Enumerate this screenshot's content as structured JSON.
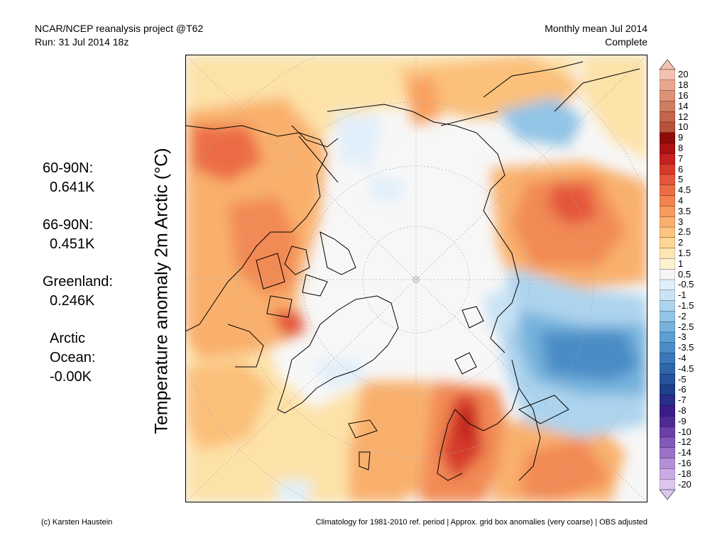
{
  "header": {
    "line1_left": "NCAR/NCEP reanalysis project @T62",
    "line2_left": "Run: 31 Jul 2014 18z",
    "line1_right": "Monthly mean Jul 2014",
    "line2_right": "Complete"
  },
  "vertical_title": "Temperature anomaly 2m Arctic (°C)",
  "stats": [
    {
      "label": "60-90N:",
      "value": "0.641K"
    },
    {
      "label": "66-90N:",
      "value": "0.451K"
    },
    {
      "label": "Greenland:",
      "value": "0.246K"
    },
    {
      "label": "Arctic",
      "label2": "Ocean:",
      "value": "-0.00K"
    }
  ],
  "colorbar": {
    "labels": [
      "20",
      "18",
      "16",
      "14",
      "12",
      "10",
      "9",
      "8",
      "7",
      "6",
      "5",
      "4.5",
      "4",
      "3.5",
      "3",
      "2.5",
      "2",
      "1.5",
      "1",
      "0.5",
      "-0.5",
      "-1",
      "-1.5",
      "-2",
      "-2.5",
      "-3",
      "-3.5",
      "-4",
      "-4.5",
      "-5",
      "-6",
      "-7",
      "-8",
      "-9",
      "-10",
      "-12",
      "-14",
      "-16",
      "-18",
      "-20"
    ],
    "colors": [
      "#f4c2b0",
      "#e8a88f",
      "#dc9276",
      "#d07c60",
      "#c3664c",
      "#b75139",
      "#8f0a0a",
      "#a81212",
      "#c42020",
      "#d63a2b",
      "#e4573a",
      "#ec6d45",
      "#f2834f",
      "#f69a5d",
      "#f9b06d",
      "#fcc47f",
      "#fdd696",
      "#fde6b2",
      "#fdf3d2",
      "#f5f5f5",
      "#e1effa",
      "#c9e3f5",
      "#add4ee",
      "#92c4e6",
      "#76b2dc",
      "#5c9fd1",
      "#4a8cc6",
      "#3b78b9",
      "#2f65ab",
      "#26539d",
      "#1e3f8d",
      "#2a2d8a",
      "#3b1c88",
      "#4f2a95",
      "#6a3fa8",
      "#8258b8",
      "#9a73c8",
      "#b38fd7",
      "#c9aae3",
      "#dcc6ee"
    ]
  },
  "footer": {
    "left": "(c) Karsten Haustein",
    "right": "Climatology for 1981-2010 ref. period | Approx. grid box anomalies (very coarse) | OBS adjusted"
  }
}
